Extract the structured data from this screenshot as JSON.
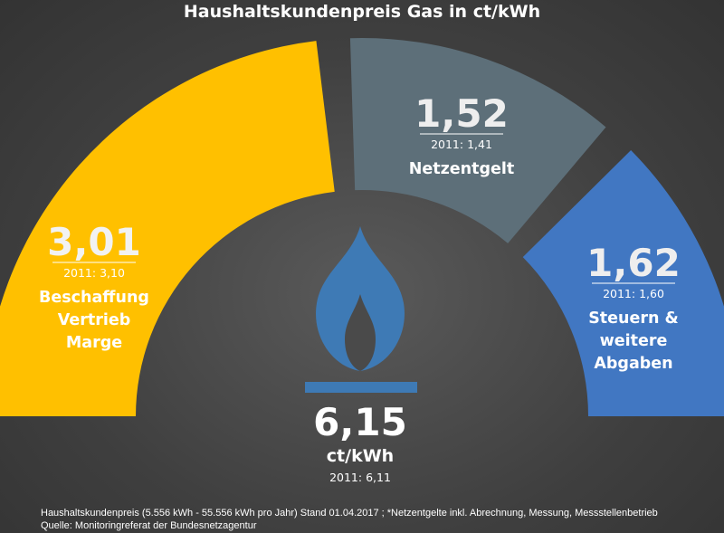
{
  "chart_data": {
    "type": "pie",
    "title": "Haushaltskundenpreis Gas in ct/kWh",
    "unit": "ct/kWh",
    "total": {
      "value": "6,15",
      "unit": "ct/kWh",
      "previous": "2011: 6,11"
    },
    "segments": [
      {
        "value": 3.01,
        "value_label": "3,01",
        "previous_label": "2011: 3,10",
        "label_lines": [
          "Beschaffung",
          "Vertrieb",
          "Marge"
        ],
        "color": "#ffc000",
        "value_color": "#f2f2f2"
      },
      {
        "value": 1.52,
        "value_label": "1,52",
        "previous_label": "2011: 1,41",
        "label_lines": [
          "Netzentgelt"
        ],
        "color": "#5d6f79",
        "value_color": "#eeeeee"
      },
      {
        "value": 1.62,
        "value_label": "1,62",
        "previous_label": "2011: 1,60",
        "label_lines": [
          "Steuern &",
          "weitere",
          "Abgaben"
        ],
        "color": "#4177c2",
        "value_color": "#eeeeee"
      }
    ],
    "footnote": [
      "Haushaltskundenpreis (5.556 kWh - 55.556 kWh pro Jahr) Stand 01.04.2017 ; *Netzentgelte inkl. Abrechnung, Messung, Messstellenbetrieb",
      "Quelle: Monitoringreferat der Bundesnetzagentur"
    ],
    "icon": "gas-flame-icon",
    "flame_color": "#3e7ab5"
  }
}
